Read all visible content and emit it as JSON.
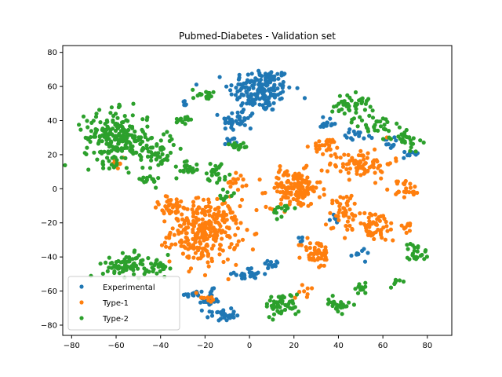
{
  "chart_data": {
    "type": "scatter",
    "title": "Pubmed-Diabetes - Validation set",
    "xlabel": "",
    "ylabel": "",
    "xlim": [
      -84,
      91
    ],
    "ylim": [
      -86,
      84
    ],
    "xticks": [
      -80,
      -60,
      -40,
      -20,
      0,
      20,
      40,
      60,
      80
    ],
    "yticks": [
      -80,
      -60,
      -40,
      -20,
      0,
      20,
      40,
      60,
      80
    ],
    "grid": false,
    "legend_position": "lower-left",
    "series": [
      {
        "name": "Experimental",
        "color": "#1f77b4",
        "clusters": [
          {
            "cx": 5,
            "cy": 58,
            "rx": 13,
            "ry": 12,
            "n": 170
          },
          {
            "cx": -5,
            "cy": 40,
            "rx": 7,
            "ry": 6,
            "n": 40
          },
          {
            "cx": -18,
            "cy": -65,
            "rx": 4,
            "ry": 5,
            "n": 25
          },
          {
            "cx": -12,
            "cy": -74,
            "rx": 5,
            "ry": 3,
            "n": 30
          },
          {
            "cx": -25,
            "cy": -62,
            "rx": 4,
            "ry": 3,
            "n": 15
          },
          {
            "cx": 0,
            "cy": -50,
            "rx": 6,
            "ry": 3,
            "n": 25
          },
          {
            "cx": 10,
            "cy": -44,
            "rx": 4,
            "ry": 2,
            "n": 12
          },
          {
            "cx": 35,
            "cy": 38,
            "rx": 4,
            "ry": 4,
            "n": 15
          },
          {
            "cx": 50,
            "cy": 32,
            "rx": 6,
            "ry": 3,
            "n": 15
          },
          {
            "cx": 62,
            "cy": 27,
            "rx": 3,
            "ry": 3,
            "n": 10
          },
          {
            "cx": 73,
            "cy": 20,
            "rx": 4,
            "ry": 2,
            "n": 10
          },
          {
            "cx": -9,
            "cy": 28,
            "rx": 3,
            "ry": 2,
            "n": 8
          },
          {
            "cx": 50,
            "cy": -38,
            "rx": 4,
            "ry": 3,
            "n": 10
          },
          {
            "cx": 38,
            "cy": -18,
            "rx": 2,
            "ry": 2,
            "n": 5
          },
          {
            "cx": -30,
            "cy": 50,
            "rx": 3,
            "ry": 2,
            "n": 5
          },
          {
            "cx": 23,
            "cy": -30,
            "rx": 2,
            "ry": 2,
            "n": 5
          }
        ]
      },
      {
        "name": "Type-1",
        "color": "#ff7f0e",
        "clusters": [
          {
            "cx": -20,
            "cy": -25,
            "rx": 14,
            "ry": 17,
            "n": 300
          },
          {
            "cx": 20,
            "cy": 0,
            "rx": 11,
            "ry": 10,
            "n": 140
          },
          {
            "cx": 50,
            "cy": 15,
            "rx": 13,
            "ry": 8,
            "n": 80
          },
          {
            "cx": 55,
            "cy": -22,
            "rx": 12,
            "ry": 8,
            "n": 70
          },
          {
            "cx": 30,
            "cy": -38,
            "rx": 6,
            "ry": 8,
            "n": 50
          },
          {
            "cx": -35,
            "cy": -10,
            "rx": 8,
            "ry": 5,
            "n": 30
          },
          {
            "cx": 70,
            "cy": 0,
            "rx": 6,
            "ry": 5,
            "n": 25
          },
          {
            "cx": 35,
            "cy": 25,
            "rx": 6,
            "ry": 4,
            "n": 25
          },
          {
            "cx": 42,
            "cy": -10,
            "rx": 6,
            "ry": 8,
            "n": 30
          },
          {
            "cx": -5,
            "cy": 5,
            "rx": 4,
            "ry": 5,
            "n": 15
          },
          {
            "cx": -18,
            "cy": -64,
            "rx": 3,
            "ry": 3,
            "n": 8
          },
          {
            "cx": 25,
            "cy": -60,
            "rx": 4,
            "ry": 3,
            "n": 8
          },
          {
            "cx": -60,
            "cy": 15,
            "rx": 4,
            "ry": 3,
            "n": 8
          },
          {
            "cx": 70,
            "cy": -22,
            "rx": 4,
            "ry": 3,
            "n": 8
          }
        ]
      },
      {
        "name": "Type-2",
        "color": "#2ca02c",
        "clusters": [
          {
            "cx": -60,
            "cy": 30,
            "rx": 13,
            "ry": 14,
            "n": 220
          },
          {
            "cx": -42,
            "cy": 22,
            "rx": 8,
            "ry": 10,
            "n": 60
          },
          {
            "cx": -55,
            "cy": -45,
            "rx": 10,
            "ry": 6,
            "n": 80
          },
          {
            "cx": -40,
            "cy": -47,
            "rx": 4,
            "ry": 6,
            "n": 25
          },
          {
            "cx": 15,
            "cy": -68,
            "rx": 7,
            "ry": 6,
            "n": 50
          },
          {
            "cx": 40,
            "cy": -68,
            "rx": 5,
            "ry": 4,
            "n": 25
          },
          {
            "cx": 50,
            "cy": -58,
            "rx": 3,
            "ry": 3,
            "n": 10
          },
          {
            "cx": 45,
            "cy": 50,
            "rx": 8,
            "ry": 5,
            "n": 40
          },
          {
            "cx": 70,
            "cy": 30,
            "rx": 6,
            "ry": 6,
            "n": 30
          },
          {
            "cx": 75,
            "cy": -38,
            "rx": 5,
            "ry": 6,
            "n": 25
          },
          {
            "cx": 55,
            "cy": 38,
            "rx": 8,
            "ry": 5,
            "n": 30
          },
          {
            "cx": -15,
            "cy": 10,
            "rx": 5,
            "ry": 5,
            "n": 25
          },
          {
            "cx": -28,
            "cy": 12,
            "rx": 5,
            "ry": 5,
            "n": 20
          },
          {
            "cx": -5,
            "cy": 25,
            "rx": 4,
            "ry": 3,
            "n": 15
          },
          {
            "cx": -30,
            "cy": 40,
            "rx": 4,
            "ry": 3,
            "n": 15
          },
          {
            "cx": -45,
            "cy": 5,
            "rx": 4,
            "ry": 3,
            "n": 15
          },
          {
            "cx": 15,
            "cy": -12,
            "rx": 4,
            "ry": 4,
            "n": 15
          },
          {
            "cx": -20,
            "cy": 55,
            "rx": 5,
            "ry": 3,
            "n": 15
          },
          {
            "cx": 65,
            "cy": -55,
            "rx": 3,
            "ry": 3,
            "n": 8
          },
          {
            "cx": -10,
            "cy": -5,
            "rx": 3,
            "ry": 3,
            "n": 10
          }
        ]
      }
    ]
  }
}
